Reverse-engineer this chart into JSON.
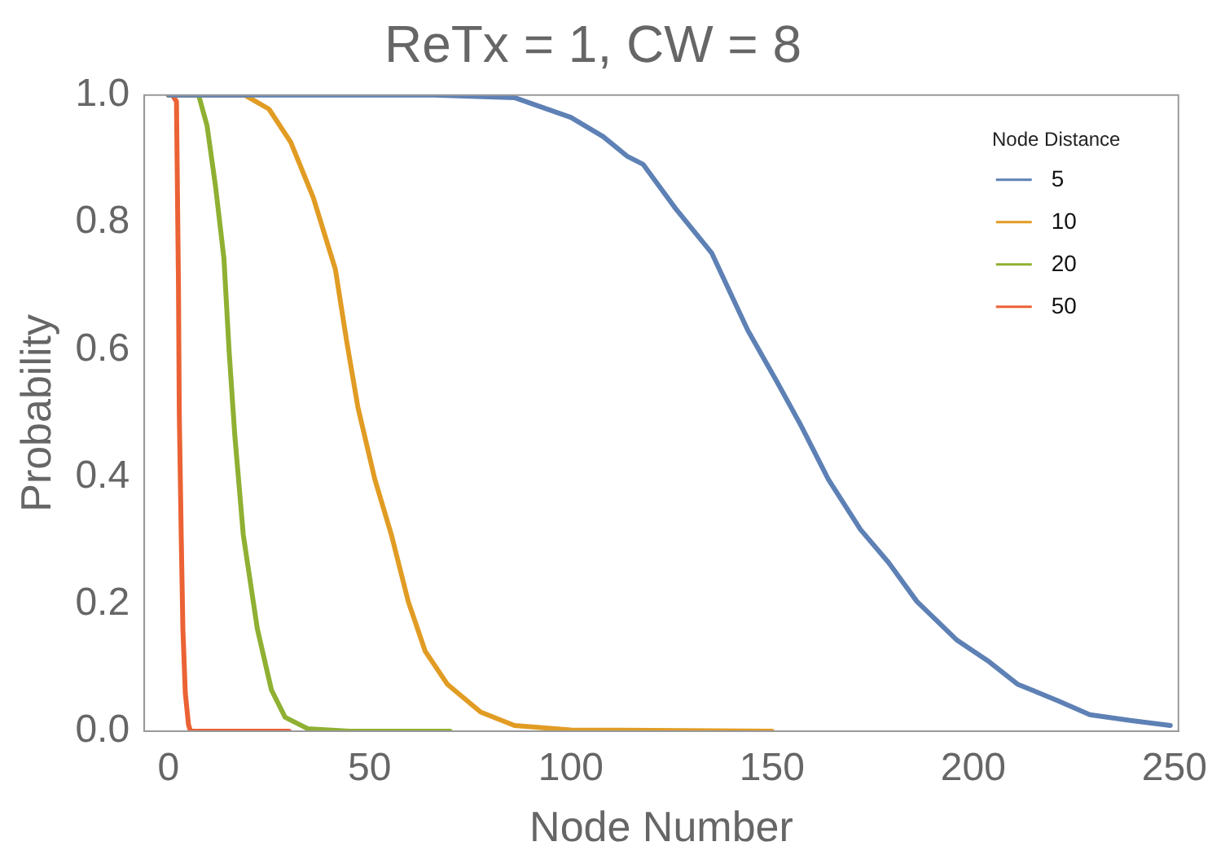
{
  "chart_data": {
    "type": "line",
    "title": "ReTx = 1, CW = 8",
    "xlabel": "Node Number",
    "ylabel": "Probability",
    "legend_title": "Node Distance",
    "legend": "top right",
    "marker": "none",
    "line_style": "solid",
    "xlim": [
      -6,
      251
    ],
    "xticks": [
      0,
      50,
      100,
      150,
      200,
      250
    ],
    "ylim": [
      0,
      1
    ],
    "yticks": [
      {
        "value": 0,
        "label": "0.0"
      },
      0.2,
      0.4,
      0.6,
      0.8,
      {
        "value": 1,
        "label": "1.0"
      }
    ],
    "series": [
      {
        "name": "5",
        "color": "#5e81b5",
        "x": [
          0,
          40,
          66,
          86,
          100,
          108,
          114,
          118,
          126,
          135,
          144,
          151,
          157,
          164,
          172,
          179,
          186,
          196,
          204,
          211,
          221,
          229,
          239,
          249
        ],
        "values": [
          1,
          1,
          1,
          0.996,
          0.965,
          0.935,
          0.904,
          0.891,
          0.822,
          0.752,
          0.63,
          0.552,
          0.483,
          0.396,
          0.317,
          0.265,
          0.204,
          0.143,
          0.109,
          0.074,
          0.048,
          0.026,
          0.017,
          0.009
        ]
      },
      {
        "name": "10",
        "color": "#e19c24",
        "x": [
          0,
          10,
          19,
          25,
          30.4,
          36,
          41.5,
          44.3,
          47.1,
          51.3,
          55.4,
          59.6,
          63.8,
          69.3,
          77.6,
          86,
          100,
          150
        ],
        "values": [
          1,
          1,
          1,
          0.978,
          0.926,
          0.839,
          0.726,
          0.613,
          0.509,
          0.396,
          0.309,
          0.204,
          0.126,
          0.074,
          0.03,
          0.009,
          0.002,
          0
        ]
      },
      {
        "name": "20",
        "color": "#8fb032",
        "x": [
          0,
          7.5,
          9.6,
          11.7,
          13.8,
          15.1,
          16.5,
          18.6,
          22.1,
          25.6,
          29,
          34.6,
          45,
          70
        ],
        "values": [
          1,
          1,
          0.952,
          0.857,
          0.743,
          0.596,
          0.465,
          0.309,
          0.161,
          0.065,
          0.022,
          0.004,
          0,
          0
        ]
      },
      {
        "name": "50",
        "color": "#eb6235",
        "x": [
          0,
          1,
          2,
          2.5,
          2.7,
          3.2,
          3.6,
          4.2,
          5,
          5.5,
          30
        ],
        "values": [
          1,
          1,
          0.99,
          0.7,
          0.5,
          0.3,
          0.16,
          0.06,
          0.01,
          0,
          0
        ]
      }
    ]
  }
}
